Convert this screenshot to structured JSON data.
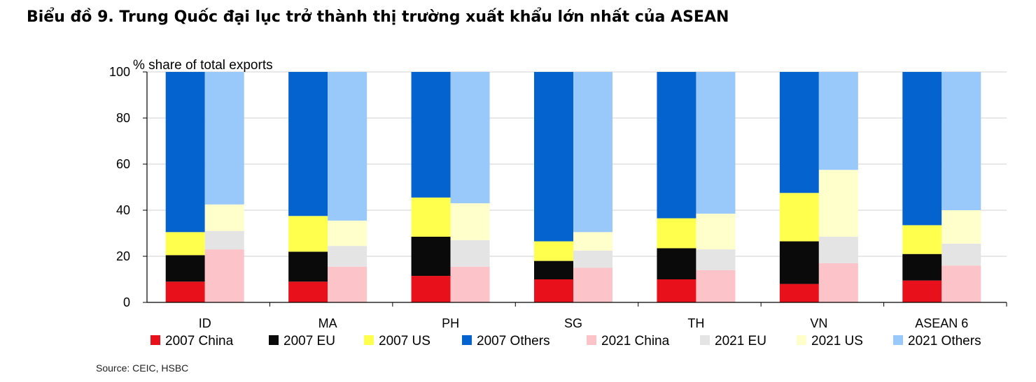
{
  "title": "Biểu đồ 9. Trung Quốc đại lục trở thành thị trường xuất khẩu lớn nhất của ASEAN",
  "source": "Source: CEIC, HSBC",
  "chart_data": {
    "type": "bar",
    "stacked": true,
    "grouped_by_year": [
      "2007",
      "2021"
    ],
    "ylabel": "% share of total  exports",
    "ylim": [
      0,
      100
    ],
    "yticks": [
      0,
      20,
      40,
      60,
      80,
      100
    ],
    "grid": true,
    "legend_position": "bottom",
    "categories": [
      "ID",
      "MA",
      "PH",
      "SG",
      "TH",
      "VN",
      "ASEAN 6"
    ],
    "series": [
      {
        "name": "2007 China",
        "group": "2007",
        "color": "#e8101a",
        "values": [
          9,
          9,
          11.5,
          10,
          10,
          8,
          9.5
        ]
      },
      {
        "name": "2007 EU",
        "group": "2007",
        "color": "#0a0a0a",
        "values": [
          11.5,
          13,
          17,
          8,
          13.5,
          18.5,
          11.5
        ]
      },
      {
        "name": "2007 US",
        "group": "2007",
        "color": "#ffff4d",
        "values": [
          10,
          15.5,
          17,
          8.5,
          13,
          21,
          12.5
        ]
      },
      {
        "name": "2007 Others",
        "group": "2007",
        "color": "#0563cf",
        "values": [
          69.5,
          62.5,
          54.5,
          73.5,
          63.5,
          52.5,
          66.5
        ]
      },
      {
        "name": "2021 China",
        "group": "2021",
        "color": "#fcc4c9",
        "values": [
          23,
          15.5,
          15.5,
          15,
          14,
          17,
          16
        ]
      },
      {
        "name": "2021 EU",
        "group": "2021",
        "color": "#e4e4e4",
        "values": [
          8,
          9,
          11.5,
          7.5,
          9,
          11.5,
          9.5
        ]
      },
      {
        "name": "2021 US",
        "group": "2021",
        "color": "#ffffcc",
        "values": [
          11.5,
          11,
          16,
          8,
          15.5,
          29,
          14.5
        ]
      },
      {
        "name": "2021 Others",
        "group": "2021",
        "color": "#99c9fb",
        "values": [
          57.5,
          64.5,
          57,
          69.5,
          61.5,
          42.5,
          60
        ]
      }
    ]
  }
}
